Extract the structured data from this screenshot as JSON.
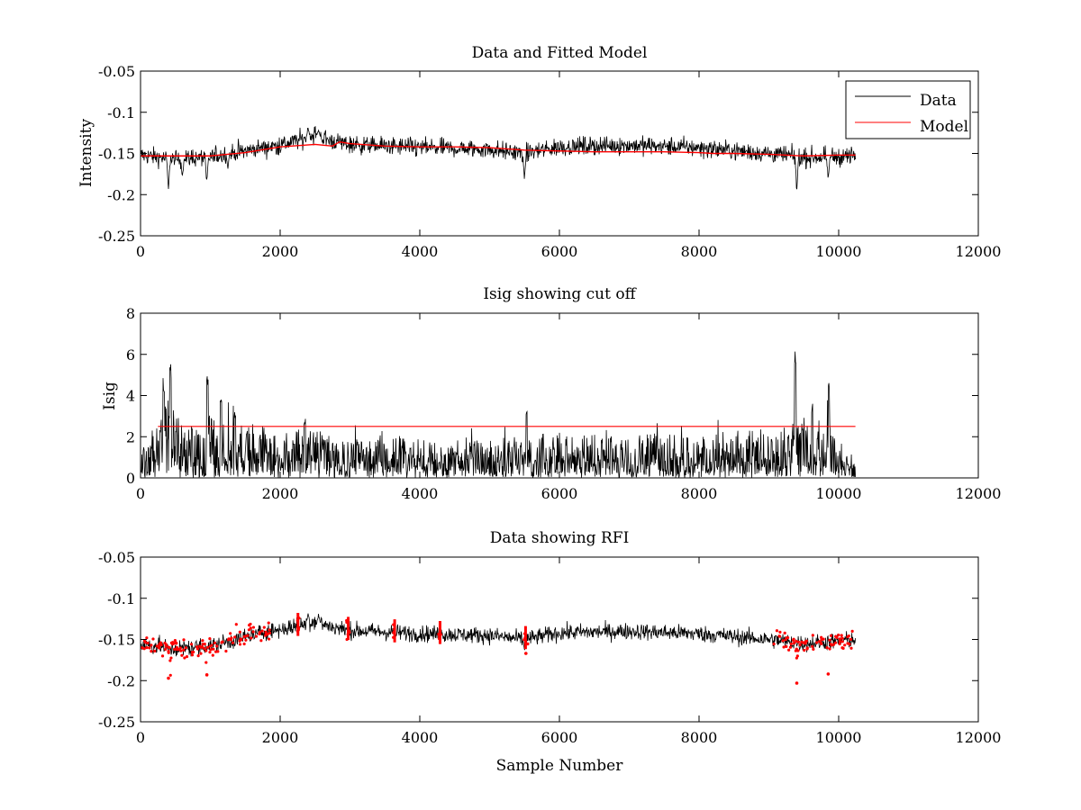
{
  "figure": {
    "background": "#ffffff",
    "data_color": "#000000",
    "model_color": "#ff0000",
    "rfi_color": "#ff0000",
    "cutoff_color": "#ff0000"
  },
  "chart_data": [
    {
      "type": "line",
      "title": "Data and Fitted Model",
      "xlabel": "",
      "ylabel": "Intensity",
      "xlim": [
        0,
        12000
      ],
      "ylim": [
        -0.25,
        -0.05
      ],
      "y_reversed": true,
      "grid": false,
      "xticks": [
        0,
        2000,
        4000,
        6000,
        8000,
        10000,
        12000
      ],
      "yticks": [
        -0.05,
        -0.1,
        -0.15,
        -0.2,
        -0.25
      ],
      "xtick_labels": [
        "0",
        "2000",
        "4000",
        "6000",
        "8000",
        "10000",
        "12000"
      ],
      "ytick_labels": [
        "-0.05",
        "-0.1",
        "-0.15",
        "-0.2",
        "-0.25"
      ],
      "legend": {
        "placement": "top-right",
        "entries": [
          "Data",
          "Model"
        ]
      },
      "series": [
        {
          "name": "Data",
          "color": "#000000",
          "x_range": [
            0,
            10240
          ],
          "baseline_x": [
            0,
            300,
            400,
            1000,
            1300,
            1800,
            2000,
            2300,
            2500,
            2700,
            3000,
            4000,
            5000,
            5500,
            6000,
            7000,
            8000,
            9000,
            9500,
            10240
          ],
          "baseline_y": [
            -0.152,
            -0.155,
            -0.158,
            -0.154,
            -0.15,
            -0.142,
            -0.14,
            -0.133,
            -0.127,
            -0.134,
            -0.139,
            -0.143,
            -0.145,
            -0.15,
            -0.142,
            -0.14,
            -0.143,
            -0.15,
            -0.155,
            -0.153
          ],
          "spikes": [
            {
              "x": 400,
              "y": -0.198
            },
            {
              "x": 600,
              "y": -0.185
            },
            {
              "x": 950,
              "y": -0.193
            },
            {
              "x": 1250,
              "y": -0.175
            },
            {
              "x": 2400,
              "y": -0.115
            },
            {
              "x": 2550,
              "y": -0.118
            },
            {
              "x": 5500,
              "y": -0.187
            },
            {
              "x": 9400,
              "y": -0.203
            },
            {
              "x": 9850,
              "y": -0.19
            }
          ]
        },
        {
          "name": "Model",
          "color": "#ff0000",
          "x": [
            0,
            500,
            1000,
            1500,
            2000,
            2500,
            2750,
            2850,
            3000,
            3500,
            4000,
            4500,
            5000,
            5500,
            6000,
            6500,
            7000,
            7500,
            8000,
            8200,
            8500,
            9000,
            9500,
            10000,
            10240
          ],
          "y": [
            -0.153,
            -0.153,
            -0.153,
            -0.149,
            -0.142,
            -0.139,
            -0.141,
            -0.136,
            -0.138,
            -0.141,
            -0.142,
            -0.142,
            -0.143,
            -0.146,
            -0.147,
            -0.148,
            -0.148,
            -0.148,
            -0.149,
            -0.15,
            -0.15,
            -0.151,
            -0.153,
            -0.152,
            -0.152
          ]
        }
      ]
    },
    {
      "type": "line",
      "title": "Isig showing cut off",
      "xlabel": "",
      "ylabel": "Isig",
      "xlim": [
        0,
        12000
      ],
      "ylim": [
        0,
        8
      ],
      "grid": false,
      "xticks": [
        0,
        2000,
        4000,
        6000,
        8000,
        10000,
        12000
      ],
      "yticks": [
        0,
        2,
        4,
        6,
        8
      ],
      "xtick_labels": [
        "0",
        "2000",
        "4000",
        "6000",
        "8000",
        "10000",
        "12000"
      ],
      "ytick_labels": [
        "0",
        "2",
        "4",
        "6",
        "8"
      ],
      "series": [
        {
          "name": "Isig",
          "color": "#000000",
          "x_range": [
            0,
            10240
          ],
          "envelope_x": [
            0,
            250,
            350,
            450,
            600,
            1000,
            1500,
            2000,
            2500,
            3000,
            5000,
            6000,
            8000,
            9300,
            9500,
            9900,
            10000,
            10240
          ],
          "envelope_y": [
            1.5,
            2.2,
            4.0,
            3.5,
            2.6,
            2.8,
            2.6,
            2.0,
            2.3,
            1.8,
            1.8,
            2.0,
            1.9,
            2.2,
            3.0,
            3.0,
            1.5,
            1.3
          ],
          "spikes": [
            {
              "x": 330,
              "y": 4.9
            },
            {
              "x": 430,
              "y": 5.6
            },
            {
              "x": 960,
              "y": 5.0
            },
            {
              "x": 1150,
              "y": 4.1
            },
            {
              "x": 1350,
              "y": 3.4
            },
            {
              "x": 2350,
              "y": 2.9
            },
            {
              "x": 5530,
              "y": 3.3
            },
            {
              "x": 9380,
              "y": 6.4
            },
            {
              "x": 9620,
              "y": 3.6
            },
            {
              "x": 9860,
              "y": 4.8
            }
          ]
        },
        {
          "name": "Cut off",
          "color": "#ff0000",
          "x": [
            250,
            10240
          ],
          "y": [
            2.5,
            2.5
          ]
        }
      ]
    },
    {
      "type": "line",
      "title": "Data showing RFI",
      "xlabel": "Sample Number",
      "ylabel": "",
      "xlim": [
        0,
        12000
      ],
      "ylim": [
        -0.25,
        -0.05
      ],
      "y_reversed": true,
      "grid": false,
      "xticks": [
        0,
        2000,
        4000,
        6000,
        8000,
        10000,
        12000
      ],
      "yticks": [
        -0.05,
        -0.1,
        -0.15,
        -0.2,
        -0.25
      ],
      "xtick_labels": [
        "0",
        "2000",
        "4000",
        "6000",
        "8000",
        "10000",
        "12000"
      ],
      "ytick_labels": [
        "-0.05",
        "-0.1",
        "-0.15",
        "-0.2",
        "-0.25"
      ],
      "series": [
        {
          "name": "Data",
          "color": "#000000",
          "x_range": [
            0,
            10240
          ],
          "baseline_x": [
            0,
            300,
            400,
            1000,
            1300,
            1800,
            2000,
            2300,
            2500,
            2700,
            3000,
            4000,
            5000,
            5500,
            6000,
            7000,
            8000,
            9000,
            9500,
            10240
          ],
          "baseline_y": [
            -0.157,
            -0.158,
            -0.162,
            -0.158,
            -0.152,
            -0.14,
            -0.138,
            -0.133,
            -0.127,
            -0.134,
            -0.139,
            -0.143,
            -0.145,
            -0.15,
            -0.142,
            -0.14,
            -0.143,
            -0.15,
            -0.155,
            -0.15
          ],
          "spikes": [
            {
              "x": 2400,
              "y": -0.115
            },
            {
              "x": 2550,
              "y": -0.118
            },
            {
              "x": 5500,
              "y": -0.165
            }
          ]
        },
        {
          "name": "RFI",
          "color": "#ff0000",
          "marker": "dot",
          "segments": [
            {
              "x_range": [
                0,
                1900
              ]
            },
            {
              "x_range": [
                2230,
                2280
              ]
            },
            {
              "x_range": [
                2950,
                3000
              ]
            },
            {
              "x_range": [
                3620,
                3660
              ]
            },
            {
              "x_range": [
                4270,
                4310
              ]
            },
            {
              "x_range": [
                5480,
                5550
              ]
            },
            {
              "x_range": [
                9060,
                10200
              ]
            }
          ],
          "extremes": [
            {
              "x": 400,
              "y": -0.197
            },
            {
              "x": 950,
              "y": -0.193
            },
            {
              "x": 5520,
              "y": -0.167
            },
            {
              "x": 9400,
              "y": -0.203
            },
            {
              "x": 9850,
              "y": -0.192
            }
          ]
        }
      ]
    }
  ]
}
